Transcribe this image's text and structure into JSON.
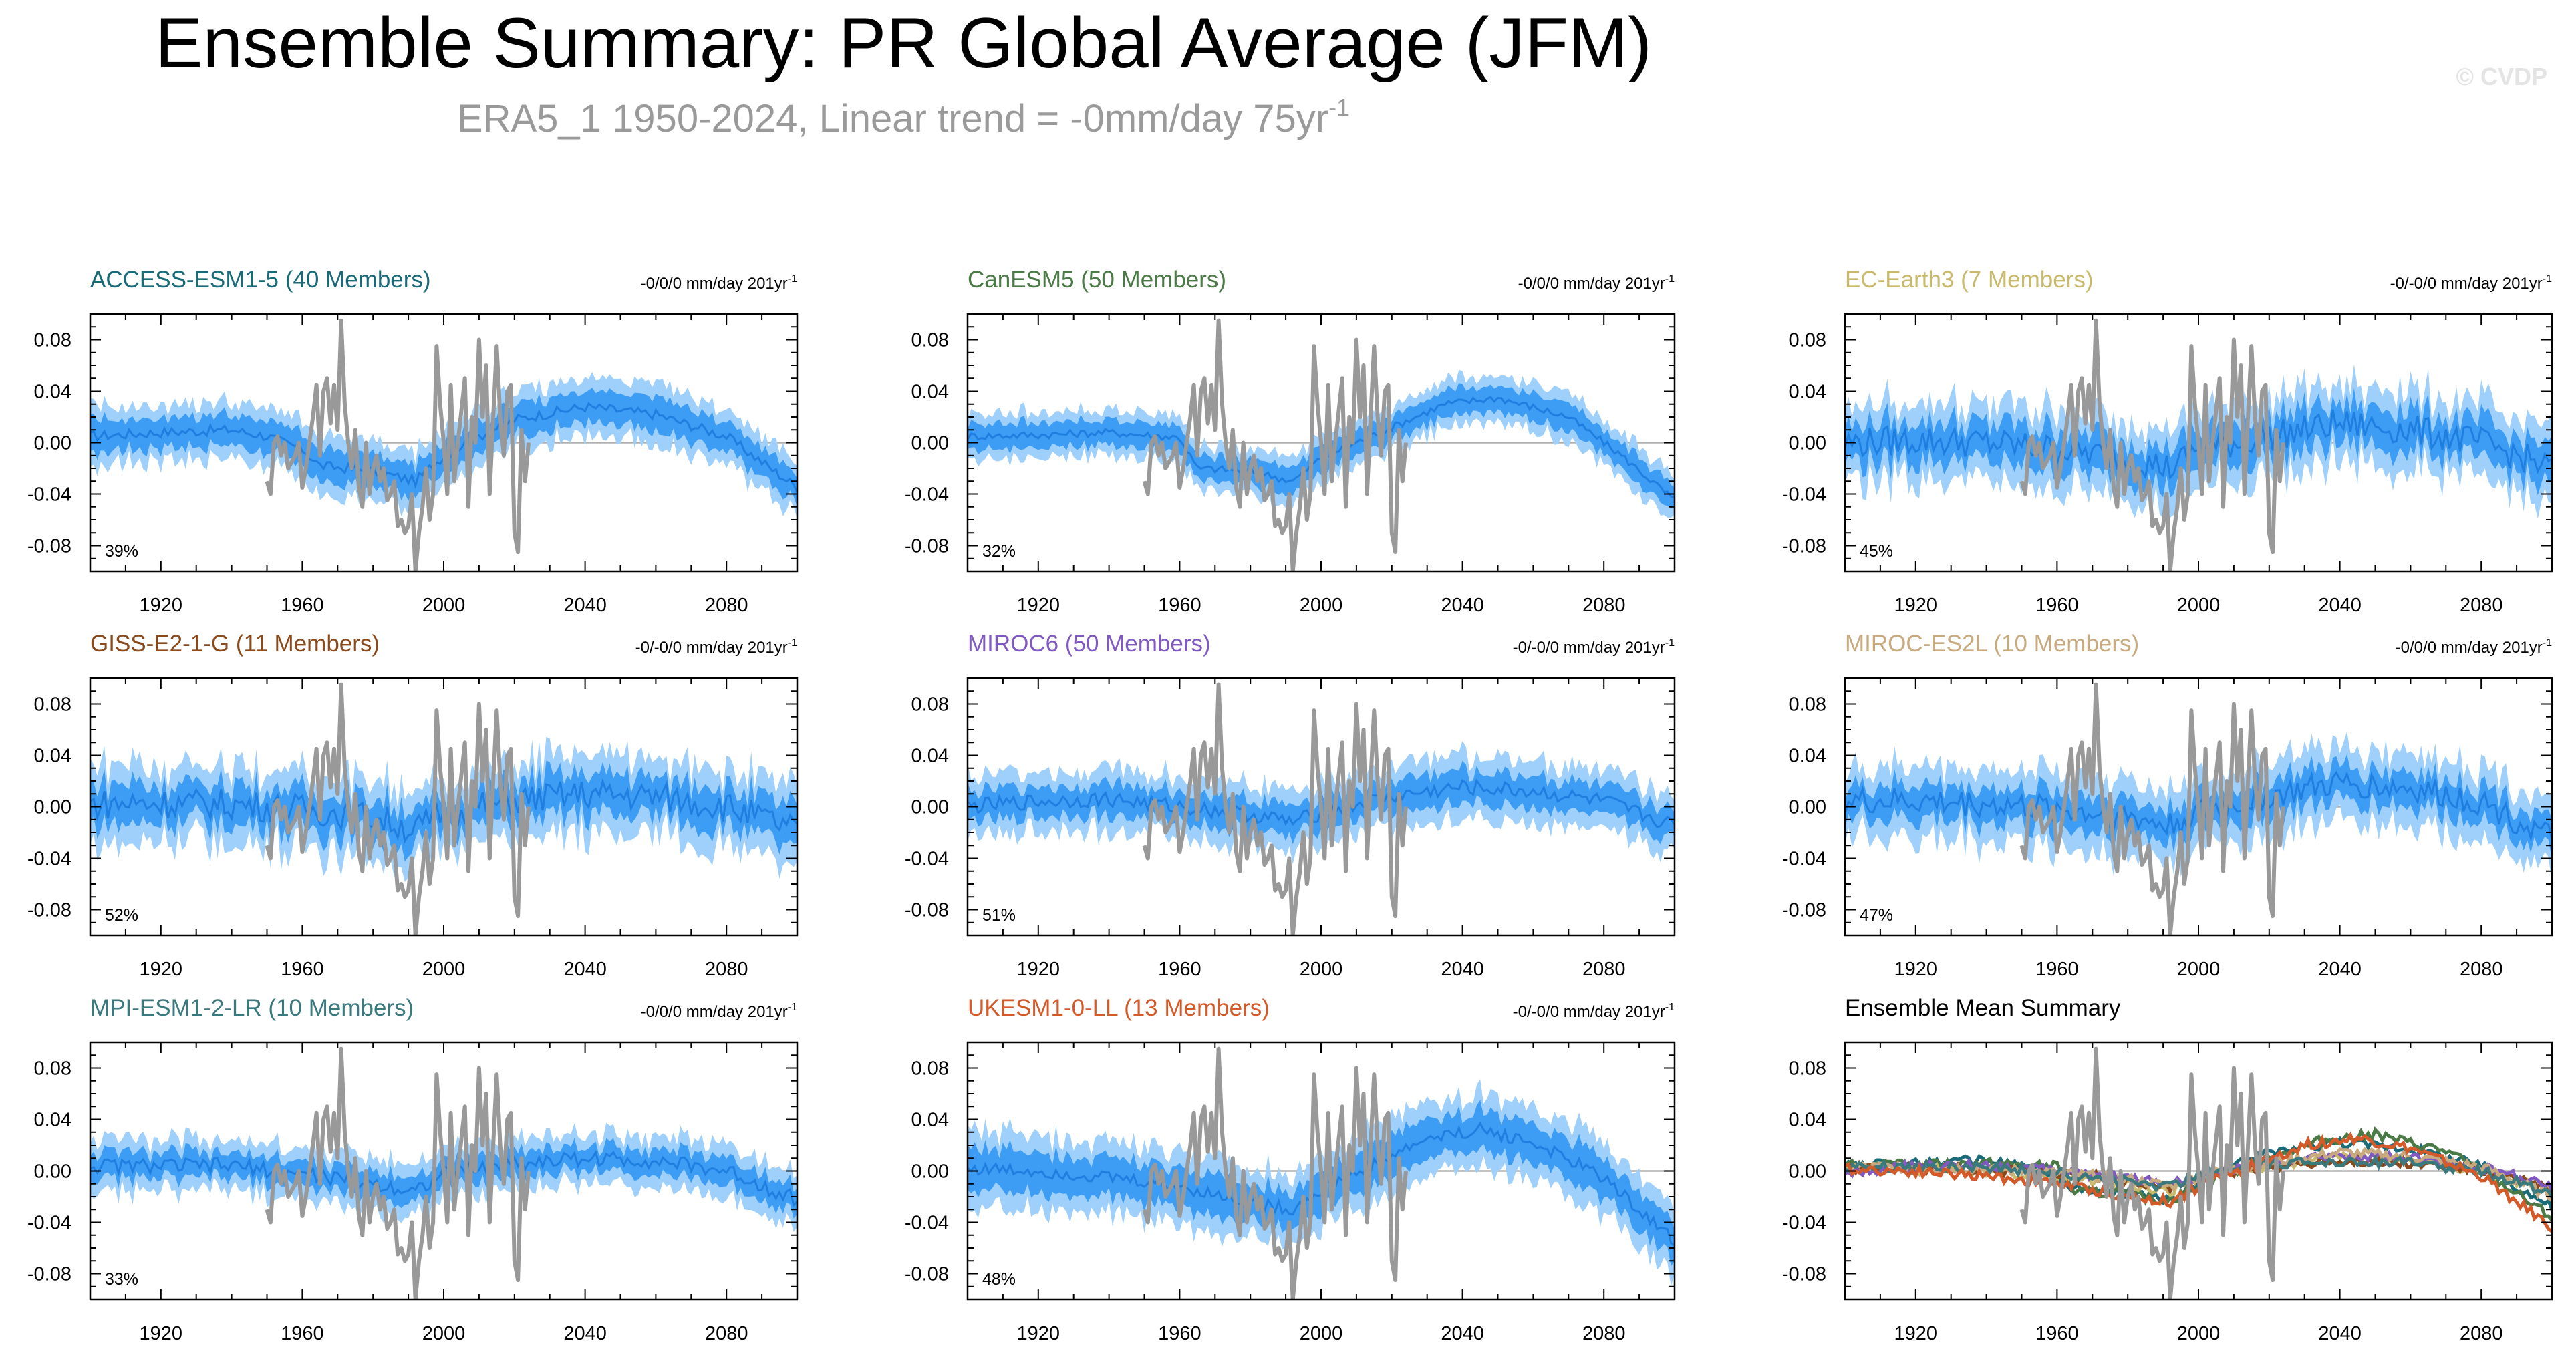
{
  "title": "Ensemble Summary: PR Global Average (JFM)",
  "subtitle_main": "ERA5_1 1950-2024, Linear trend = -0mm/day 75yr",
  "subtitle_sup": "-1",
  "watermark": "© CVDP",
  "trend_unit_sup": "-1",
  "x_tick_labels": [
    "1920",
    "1960",
    "2000",
    "2040",
    "2080"
  ],
  "y_tick_labels": [
    "0.08",
    "0.04",
    "0.00",
    "-0.04",
    "-0.08"
  ],
  "colors": {
    "band_outer": "#9fd0fb",
    "band_inner": "#3d9df5",
    "mean_line": "#1e7fe0",
    "obs_line": "#999999",
    "zero_line": "#b0b0b0",
    "axis": "#000000"
  },
  "chart_data": [
    {
      "type": "line",
      "title": "ACCESS-ESM1-5 (40 Members)",
      "title_color": "#1a6b7a",
      "trend": "-0/0/0 mm/day 201yr",
      "percent": "39%",
      "ensemble_mean": [
        {
          "x": 1900,
          "y": 0.005
        },
        {
          "x": 1920,
          "y": 0.008
        },
        {
          "x": 1940,
          "y": 0.01
        },
        {
          "x": 1950,
          "y": 0.005
        },
        {
          "x": 1960,
          "y": -0.005
        },
        {
          "x": 1965,
          "y": -0.018
        },
        {
          "x": 1980,
          "y": -0.022
        },
        {
          "x": 1992,
          "y": -0.03
        },
        {
          "x": 2000,
          "y": -0.01
        },
        {
          "x": 2010,
          "y": 0.005
        },
        {
          "x": 2020,
          "y": 0.018
        },
        {
          "x": 2040,
          "y": 0.028
        },
        {
          "x": 2060,
          "y": 0.022
        },
        {
          "x": 2080,
          "y": 0.005
        },
        {
          "x": 2100,
          "y": -0.035
        }
      ],
      "inner_band_halfwidth": 0.012,
      "outer_band_halfwidth": 0.022,
      "noise_amplitude": 0.004,
      "xlim": [
        1900,
        2100
      ],
      "ylim": [
        -0.1,
        0.1
      ]
    },
    {
      "type": "line",
      "title": "CanESM5 (50 Members)",
      "title_color": "#4a7a45",
      "trend": "-0/0/0 mm/day 201yr",
      "percent": "32%",
      "ensemble_mean": [
        {
          "x": 1900,
          "y": 0.005
        },
        {
          "x": 1920,
          "y": 0.006
        },
        {
          "x": 1940,
          "y": 0.008
        },
        {
          "x": 1960,
          "y": 0.004
        },
        {
          "x": 1965,
          "y": -0.02
        },
        {
          "x": 1980,
          "y": -0.022
        },
        {
          "x": 1992,
          "y": -0.03
        },
        {
          "x": 2000,
          "y": -0.012
        },
        {
          "x": 2010,
          "y": 0.0
        },
        {
          "x": 2020,
          "y": 0.012
        },
        {
          "x": 2035,
          "y": 0.03
        },
        {
          "x": 2050,
          "y": 0.035
        },
        {
          "x": 2070,
          "y": 0.02
        },
        {
          "x": 2085,
          "y": -0.01
        },
        {
          "x": 2100,
          "y": -0.045
        }
      ],
      "inner_band_halfwidth": 0.01,
      "outer_band_halfwidth": 0.018,
      "noise_amplitude": 0.003,
      "xlim": [
        1900,
        2100
      ],
      "ylim": [
        -0.1,
        0.1
      ]
    },
    {
      "type": "line",
      "title": "EC-Earth3 (7 Members)",
      "title_color": "#c9b96b",
      "trend": "-0/-0/0 mm/day 201yr",
      "percent": "45%",
      "ensemble_mean": [
        {
          "x": 1900,
          "y": 0.0
        },
        {
          "x": 1920,
          "y": 0.002
        },
        {
          "x": 1940,
          "y": 0.0
        },
        {
          "x": 1960,
          "y": -0.005
        },
        {
          "x": 1980,
          "y": -0.012
        },
        {
          "x": 1992,
          "y": -0.02
        },
        {
          "x": 2000,
          "y": -0.005
        },
        {
          "x": 2020,
          "y": 0.005
        },
        {
          "x": 2040,
          "y": 0.015
        },
        {
          "x": 2060,
          "y": 0.01
        },
        {
          "x": 2080,
          "y": 0.0
        },
        {
          "x": 2100,
          "y": -0.02
        }
      ],
      "inner_band_halfwidth": 0.015,
      "outer_band_halfwidth": 0.03,
      "noise_amplitude": 0.012,
      "xlim": [
        1900,
        2100
      ],
      "ylim": [
        -0.1,
        0.1
      ]
    },
    {
      "type": "line",
      "title": "GISS-E2-1-G (11 Members)",
      "title_color": "#8b4a1c",
      "trend": "-0/-0/0 mm/day 201yr",
      "percent": "52%",
      "ensemble_mean": [
        {
          "x": 1900,
          "y": 0.002
        },
        {
          "x": 1920,
          "y": 0.003
        },
        {
          "x": 1940,
          "y": 0.002
        },
        {
          "x": 1960,
          "y": -0.002
        },
        {
          "x": 1980,
          "y": -0.008
        },
        {
          "x": 1992,
          "y": -0.018
        },
        {
          "x": 2000,
          "y": -0.005
        },
        {
          "x": 2020,
          "y": 0.005
        },
        {
          "x": 2040,
          "y": 0.01
        },
        {
          "x": 2060,
          "y": 0.008
        },
        {
          "x": 2080,
          "y": 0.0
        },
        {
          "x": 2100,
          "y": -0.018
        }
      ],
      "inner_band_halfwidth": 0.015,
      "outer_band_halfwidth": 0.03,
      "noise_amplitude": 0.012,
      "xlim": [
        1900,
        2100
      ],
      "ylim": [
        -0.1,
        0.1
      ]
    },
    {
      "type": "line",
      "title": "MIROC6 (50 Members)",
      "title_color": "#8059c2",
      "trend": "-0/-0/0 mm/day 201yr",
      "percent": "51%",
      "ensemble_mean": [
        {
          "x": 1900,
          "y": 0.0
        },
        {
          "x": 1920,
          "y": 0.004
        },
        {
          "x": 1940,
          "y": 0.006
        },
        {
          "x": 1960,
          "y": 0.0
        },
        {
          "x": 1980,
          "y": -0.006
        },
        {
          "x": 1992,
          "y": -0.012
        },
        {
          "x": 2000,
          "y": -0.005
        },
        {
          "x": 2020,
          "y": 0.008
        },
        {
          "x": 2040,
          "y": 0.015
        },
        {
          "x": 2060,
          "y": 0.012
        },
        {
          "x": 2080,
          "y": 0.004
        },
        {
          "x": 2100,
          "y": -0.015
        }
      ],
      "inner_band_halfwidth": 0.012,
      "outer_band_halfwidth": 0.024,
      "noise_amplitude": 0.006,
      "xlim": [
        1900,
        2100
      ],
      "ylim": [
        -0.1,
        0.1
      ]
    },
    {
      "type": "line",
      "title": "MIROC-ES2L (10 Members)",
      "title_color": "#c9a97e",
      "trend": "-0/0/0 mm/day 201yr",
      "percent": "47%",
      "ensemble_mean": [
        {
          "x": 1900,
          "y": 0.004
        },
        {
          "x": 1920,
          "y": 0.004
        },
        {
          "x": 1940,
          "y": 0.002
        },
        {
          "x": 1960,
          "y": -0.002
        },
        {
          "x": 1980,
          "y": -0.008
        },
        {
          "x": 1992,
          "y": -0.015
        },
        {
          "x": 2000,
          "y": -0.005
        },
        {
          "x": 2020,
          "y": 0.008
        },
        {
          "x": 2040,
          "y": 0.018
        },
        {
          "x": 2060,
          "y": 0.014
        },
        {
          "x": 2080,
          "y": 0.004
        },
        {
          "x": 2100,
          "y": -0.025
        }
      ],
      "inner_band_halfwidth": 0.013,
      "outer_band_halfwidth": 0.028,
      "noise_amplitude": 0.011,
      "xlim": [
        1900,
        2100
      ],
      "ylim": [
        -0.1,
        0.1
      ]
    },
    {
      "type": "line",
      "title": "MPI-ESM1-2-LR (10 Members)",
      "title_color": "#3a7a7f",
      "trend": "-0/0/0 mm/day 201yr",
      "percent": "33%",
      "ensemble_mean": [
        {
          "x": 1900,
          "y": 0.004
        },
        {
          "x": 1920,
          "y": 0.004
        },
        {
          "x": 1940,
          "y": 0.004
        },
        {
          "x": 1960,
          "y": -0.002
        },
        {
          "x": 1980,
          "y": -0.01
        },
        {
          "x": 1992,
          "y": -0.015
        },
        {
          "x": 2000,
          "y": -0.002
        },
        {
          "x": 2020,
          "y": 0.006
        },
        {
          "x": 2040,
          "y": 0.01
        },
        {
          "x": 2060,
          "y": 0.008
        },
        {
          "x": 2080,
          "y": 0.0
        },
        {
          "x": 2100,
          "y": -0.022
        }
      ],
      "inner_band_halfwidth": 0.01,
      "outer_band_halfwidth": 0.02,
      "noise_amplitude": 0.006,
      "xlim": [
        1900,
        2100
      ],
      "ylim": [
        -0.1,
        0.1
      ]
    },
    {
      "type": "line",
      "title": "UKESM1-0-LL (13 Members)",
      "title_color": "#d45a2a",
      "trend": "-0/-0/0 mm/day 201yr",
      "percent": "48%",
      "ensemble_mean": [
        {
          "x": 1900,
          "y": 0.002
        },
        {
          "x": 1920,
          "y": 0.0
        },
        {
          "x": 1940,
          "y": -0.005
        },
        {
          "x": 1960,
          "y": -0.012
        },
        {
          "x": 1980,
          "y": -0.025
        },
        {
          "x": 1992,
          "y": -0.03
        },
        {
          "x": 2000,
          "y": -0.015
        },
        {
          "x": 2015,
          "y": 0.005
        },
        {
          "x": 2030,
          "y": 0.025
        },
        {
          "x": 2045,
          "y": 0.032
        },
        {
          "x": 2060,
          "y": 0.022
        },
        {
          "x": 2080,
          "y": -0.005
        },
        {
          "x": 2100,
          "y": -0.055
        }
      ],
      "inner_band_halfwidth": 0.015,
      "outer_band_halfwidth": 0.028,
      "noise_amplitude": 0.005,
      "xlim": [
        1900,
        2100
      ],
      "ylim": [
        -0.1,
        0.1
      ]
    },
    {
      "type": "line",
      "title": "Ensemble Mean Summary",
      "title_color": "#000000",
      "trend": "",
      "percent": "",
      "is_summary": true,
      "xlim": [
        1900,
        2100
      ],
      "ylim": [
        -0.1,
        0.1
      ]
    }
  ],
  "observations": {
    "name": "ERA5_1",
    "x": [
      1950,
      1951,
      1952,
      1953,
      1954,
      1955,
      1956,
      1957,
      1958,
      1959,
      1960,
      1961,
      1962,
      1963,
      1964,
      1965,
      1966,
      1967,
      1968,
      1969,
      1970,
      1971,
      1972,
      1973,
      1974,
      1975,
      1976,
      1977,
      1978,
      1979,
      1980,
      1981,
      1982,
      1983,
      1984,
      1985,
      1986,
      1987,
      1988,
      1989,
      1990,
      1991,
      1992,
      1993,
      1994,
      1995,
      1996,
      1997,
      1998,
      1999,
      2000,
      2001,
      2002,
      2003,
      2004,
      2005,
      2006,
      2007,
      2008,
      2009,
      2010,
      2011,
      2012,
      2013,
      2014,
      2015,
      2016,
      2017,
      2018,
      2019,
      2020,
      2021,
      2022,
      2023,
      2024
    ],
    "y": [
      -0.03,
      -0.04,
      0.0,
      0.005,
      -0.01,
      0.0,
      -0.02,
      -0.015,
      -0.01,
      0.0,
      -0.035,
      -0.02,
      0.0,
      0.02,
      0.045,
      -0.01,
      0.04,
      0.05,
      0.015,
      0.045,
      0.01,
      0.095,
      0.03,
      0.0,
      -0.02,
      0.01,
      -0.035,
      -0.05,
      0.0,
      -0.04,
      -0.02,
      -0.01,
      -0.03,
      -0.02,
      -0.045,
      -0.04,
      -0.03,
      -0.065,
      -0.06,
      -0.07,
      -0.065,
      -0.04,
      -0.1,
      -0.07,
      -0.05,
      -0.02,
      -0.06,
      -0.04,
      0.075,
      0.03,
      0.0,
      -0.04,
      0.045,
      -0.03,
      0.0,
      0.025,
      0.05,
      -0.05,
      0.02,
      0.0,
      0.08,
      0.02,
      0.06,
      -0.04,
      0.02,
      0.075,
      0.02,
      -0.01,
      0.04,
      0.045,
      -0.07,
      -0.085,
      0.01,
      -0.03,
      0.0
    ]
  },
  "summary_series": [
    {
      "name": "ACCESS-ESM1-5",
      "color": "#1a6b7a"
    },
    {
      "name": "CanESM5",
      "color": "#4a7a45"
    },
    {
      "name": "EC-Earth3",
      "color": "#c9b96b"
    },
    {
      "name": "GISS-E2-1-G",
      "color": "#8b4a1c"
    },
    {
      "name": "MIROC6",
      "color": "#8059c2"
    },
    {
      "name": "MIROC-ES2L",
      "color": "#c9a97e"
    },
    {
      "name": "MPI-ESM1-2-LR",
      "color": "#3a7a7f"
    },
    {
      "name": "UKESM1-0-LL",
      "color": "#d45a2a"
    }
  ]
}
